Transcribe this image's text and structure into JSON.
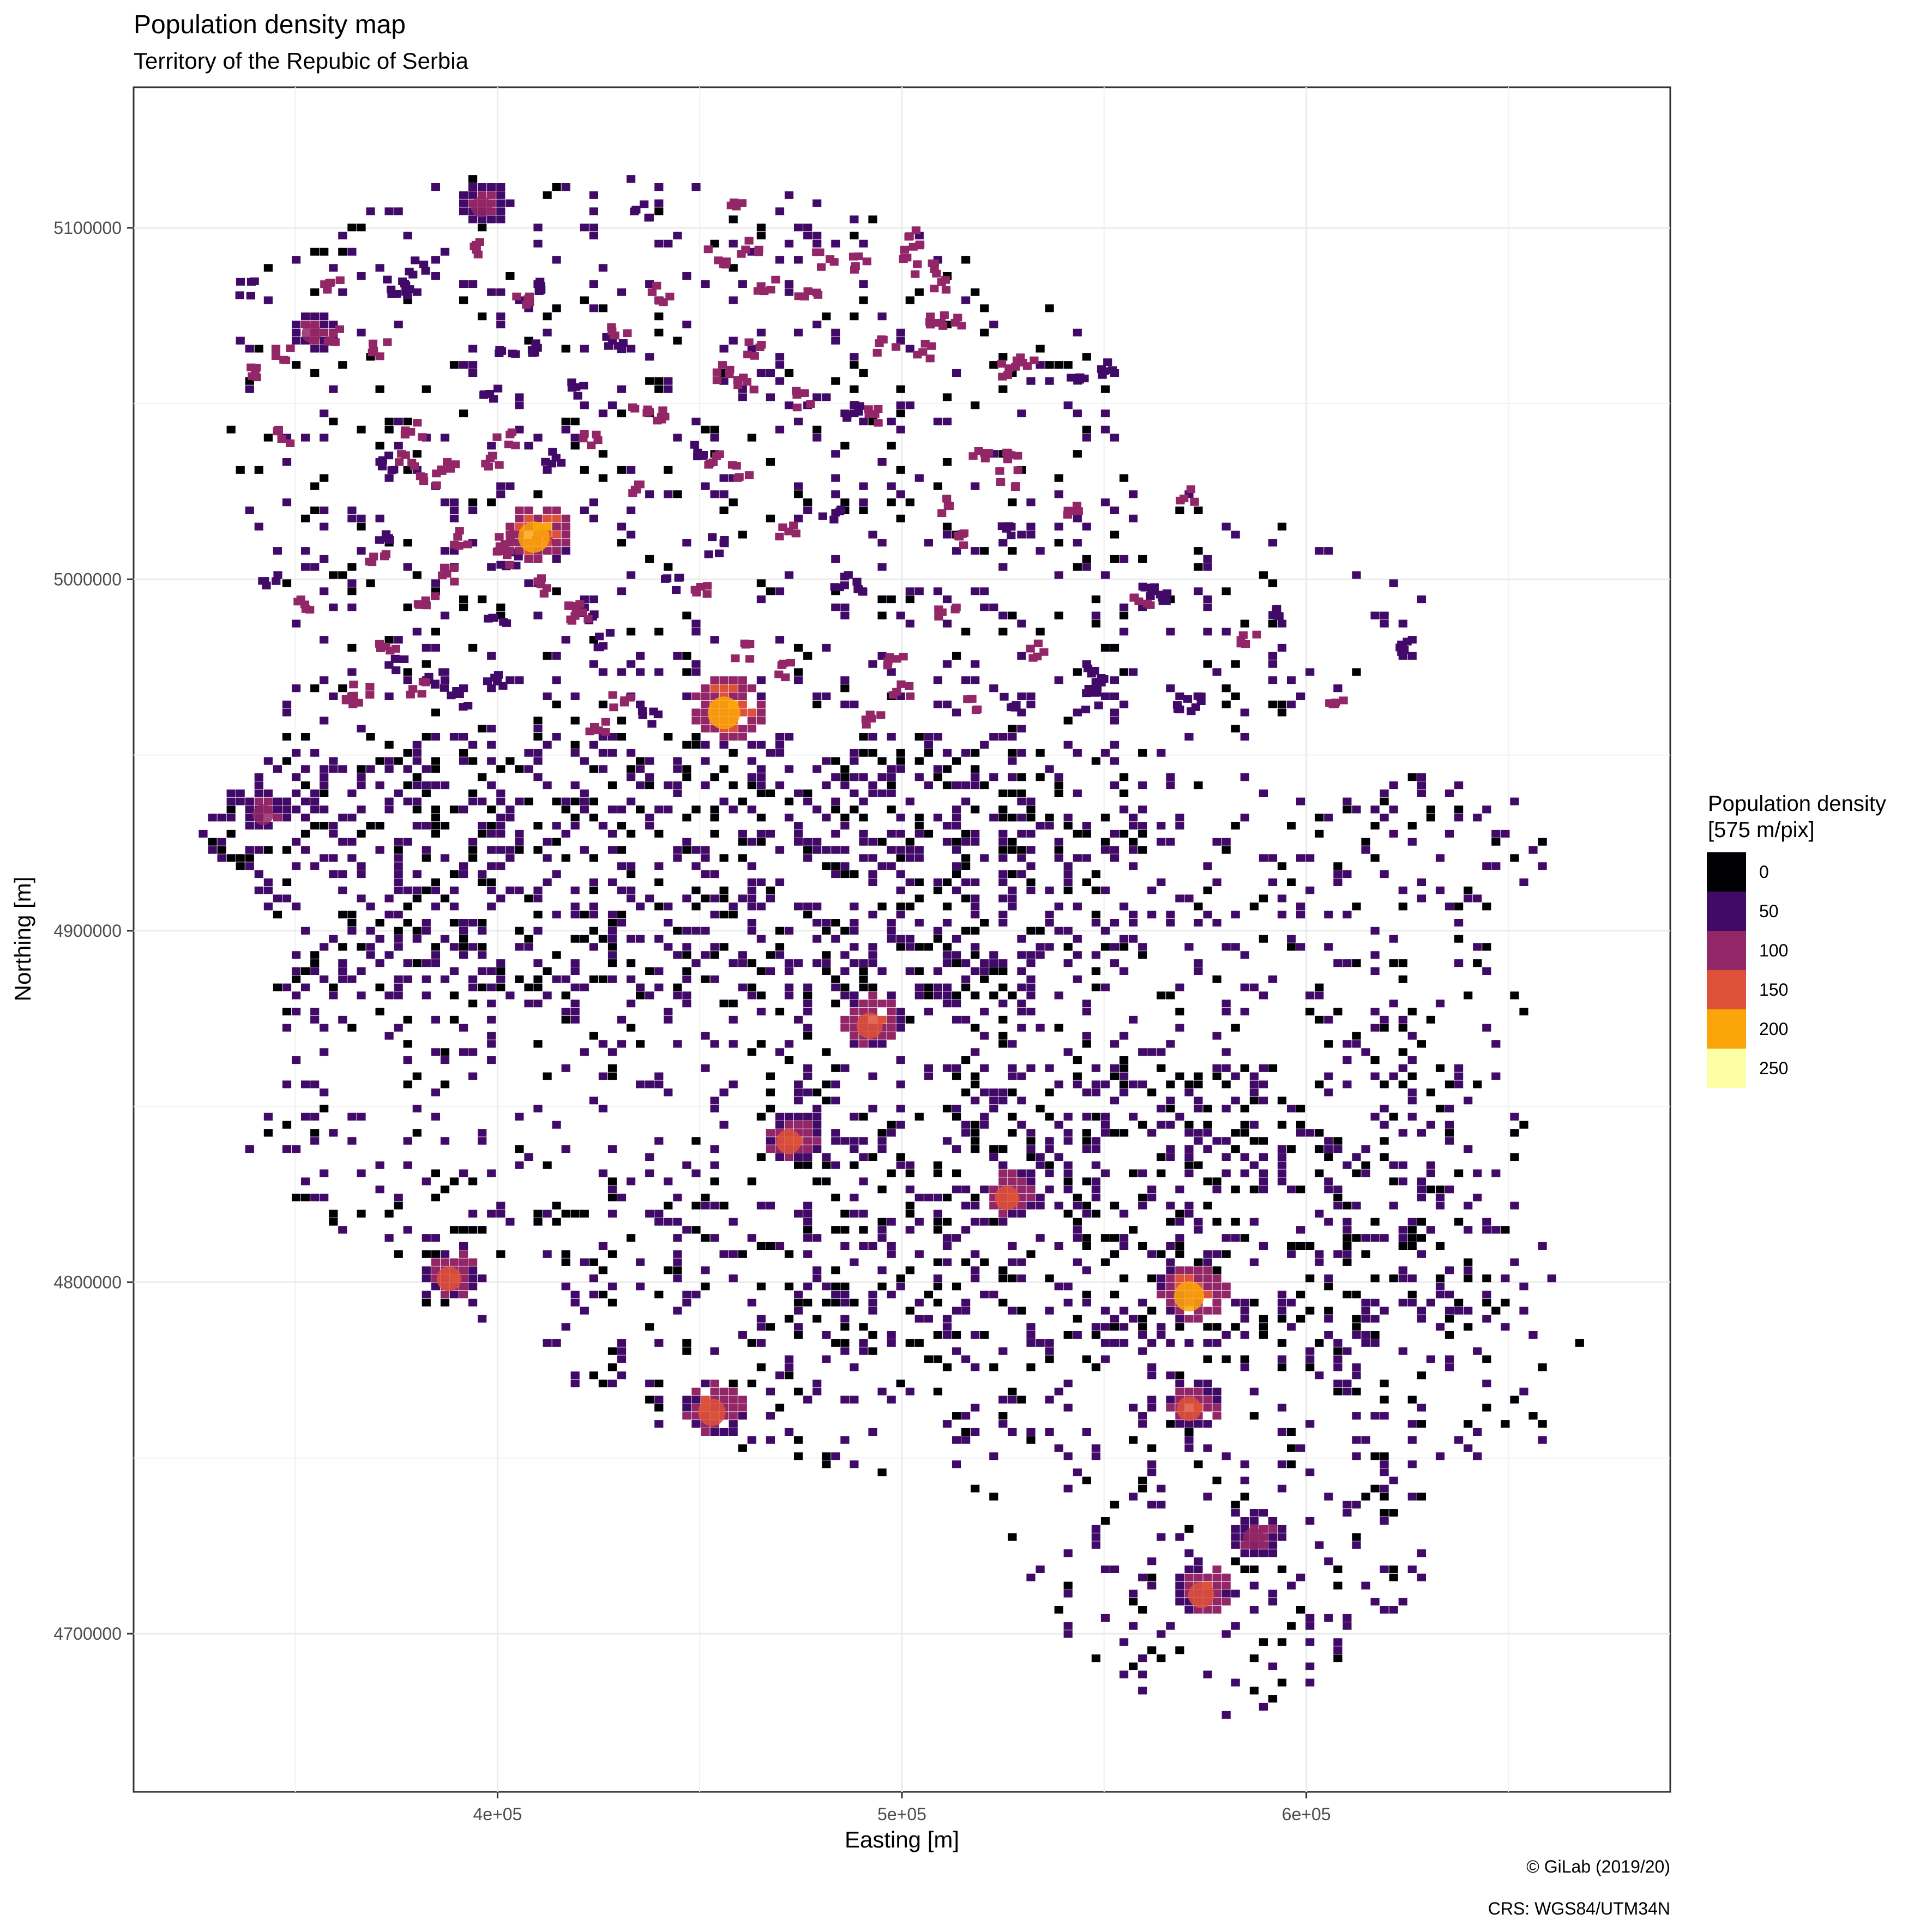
{
  "title": "Population density map",
  "subtitle": "Territory of the Repubic of Serbia",
  "chart_data": {
    "type": "heatmap",
    "xlabel": "Easting [m]",
    "ylabel": "Northing [m]",
    "xlim": [
      310000,
      690000
    ],
    "ylim": [
      4655000,
      5140000
    ],
    "x_ticks": [
      {
        "value": 400000,
        "label": "4e+05"
      },
      {
        "value": 500000,
        "label": "5e+05"
      },
      {
        "value": 600000,
        "label": "6e+05"
      }
    ],
    "y_ticks": [
      {
        "value": 4700000,
        "label": "4700000"
      },
      {
        "value": 4800000,
        "label": "4800000"
      },
      {
        "value": 4900000,
        "label": "4900000"
      },
      {
        "value": 5000000,
        "label": "5000000"
      },
      {
        "value": 5100000,
        "label": "5100000"
      }
    ],
    "grid": true,
    "legend": {
      "title_line1": "Population density",
      "title_line2": "[575 m/pix]",
      "placement": "right",
      "entries": [
        {
          "label": "0",
          "color": "#000004"
        },
        {
          "label": "50",
          "color": "#420A68"
        },
        {
          "label": "100",
          "color": "#932667"
        },
        {
          "label": "150",
          "color": "#DD513A"
        },
        {
          "label": "200",
          "color": "#FCA50A"
        },
        {
          "label": "250",
          "color": "#FCFFA4"
        }
      ]
    },
    "hotspots": [
      {
        "name": "",
        "x": 456000,
        "y": 4962000,
        "value": 200
      },
      {
        "name": "",
        "x": 409000,
        "y": 5012000,
        "value": 190
      },
      {
        "name": "",
        "x": 396000,
        "y": 5106000,
        "value": 110
      },
      {
        "name": "",
        "x": 354000,
        "y": 5070000,
        "value": 100
      },
      {
        "name": "",
        "x": 571000,
        "y": 4796000,
        "value": 180
      },
      {
        "name": "",
        "x": 492000,
        "y": 4873000,
        "value": 150
      },
      {
        "name": "",
        "x": 472000,
        "y": 4840000,
        "value": 140
      },
      {
        "name": "",
        "x": 574000,
        "y": 4711000,
        "value": 150
      },
      {
        "name": "",
        "x": 526000,
        "y": 4824000,
        "value": 140
      },
      {
        "name": "",
        "x": 453000,
        "y": 4763000,
        "value": 160
      },
      {
        "name": "",
        "x": 388000,
        "y": 4801000,
        "value": 140
      },
      {
        "name": "",
        "x": 342000,
        "y": 4933000,
        "value": 110
      },
      {
        "name": "",
        "x": 571000,
        "y": 4764000,
        "value": 140
      },
      {
        "name": "",
        "x": 587000,
        "y": 4727000,
        "value": 120
      }
    ]
  },
  "caption": {
    "copyright": "© GiLab (2019/20)",
    "crs": "CRS: WGS84/UTM34N"
  }
}
